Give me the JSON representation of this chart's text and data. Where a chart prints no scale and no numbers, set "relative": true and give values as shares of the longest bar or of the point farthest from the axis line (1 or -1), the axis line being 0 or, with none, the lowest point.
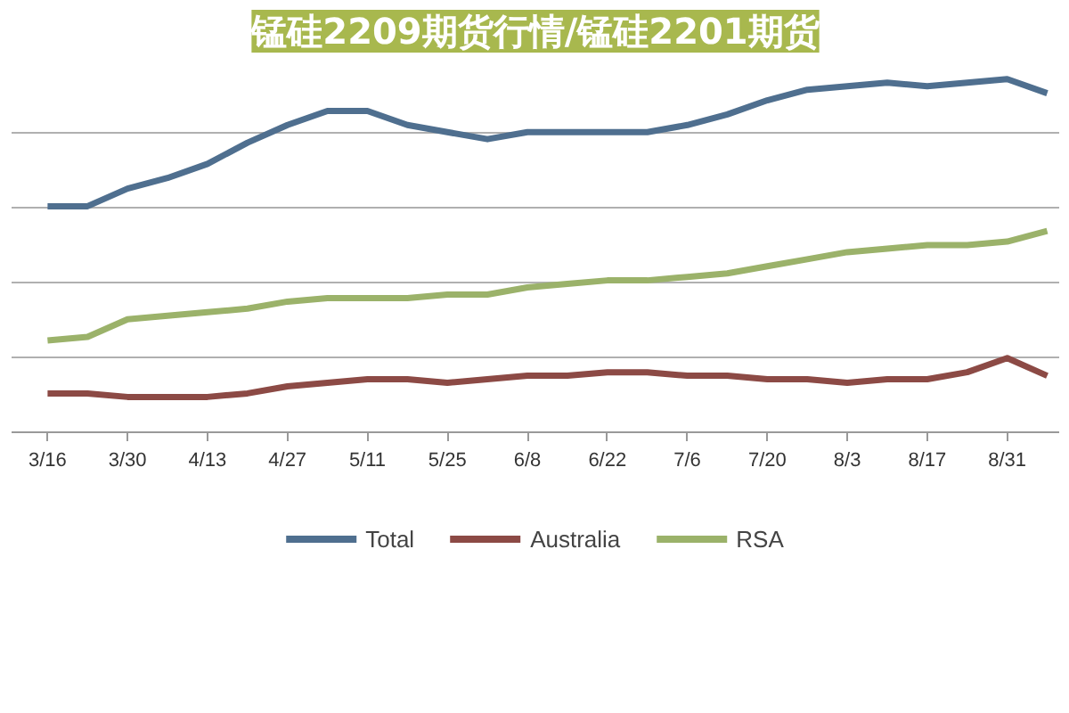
{
  "chart_data": {
    "type": "line",
    "title": "锰硅2209期货行情/锰硅2201期货",
    "relative": true,
    "grid": "y",
    "legend": "bottom",
    "marker": "none",
    "line_style": "solid",
    "categories": [
      "3/16",
      null,
      "3/30",
      null,
      "4/13",
      null,
      "4/27",
      null,
      "5/11",
      null,
      "5/25",
      null,
      "6/8",
      null,
      "6/22",
      null,
      "7/6",
      null,
      "7/20",
      null,
      "8/3",
      null,
      "8/17",
      null,
      "8/31",
      null
    ],
    "series": [
      {
        "name": "Total",
        "color": "#4f6f8f",
        "values": [
          0.64,
          0.64,
          0.69,
          0.72,
          0.76,
          0.82,
          0.87,
          0.91,
          0.91,
          0.87,
          0.85,
          0.83,
          0.85,
          0.85,
          0.85,
          0.85,
          0.87,
          0.9,
          0.94,
          0.97,
          0.98,
          0.99,
          0.98,
          0.99,
          1,
          0.96
        ]
      },
      {
        "name": "Australia",
        "color": "#8c4a45",
        "values": [
          0.11,
          0.11,
          0.1,
          0.1,
          0.1,
          0.11,
          0.13,
          0.14,
          0.15,
          0.15,
          0.14,
          0.15,
          0.16,
          0.16,
          0.17,
          0.17,
          0.16,
          0.16,
          0.15,
          0.15,
          0.14,
          0.15,
          0.15,
          0.17,
          0.21,
          0.16
        ]
      },
      {
        "name": "RSA",
        "color": "#9bb26a",
        "values": [
          0.26,
          0.27,
          0.32,
          0.33,
          0.34,
          0.35,
          0.37,
          0.38,
          0.38,
          0.38,
          0.39,
          0.39,
          0.41,
          0.42,
          0.43,
          0.43,
          0.44,
          0.45,
          0.47,
          0.49,
          0.51,
          0.52,
          0.53,
          0.53,
          0.54,
          0.57
        ]
      }
    ]
  }
}
